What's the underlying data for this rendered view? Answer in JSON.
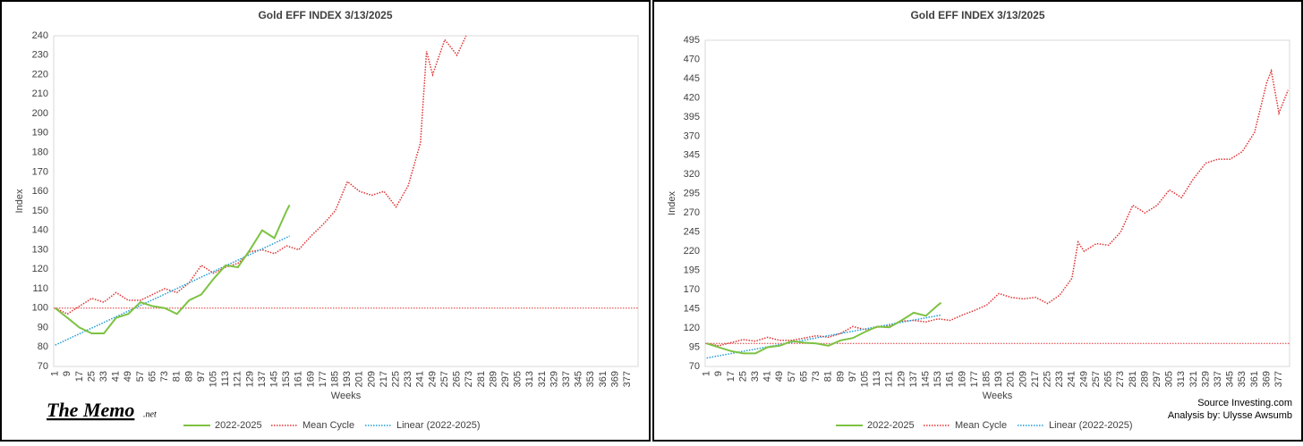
{
  "chart_data": [
    {
      "type": "line",
      "title": "Gold EFF  INDEX 3/13/2025",
      "x_label": "Weeks",
      "y_label": "Index",
      "xlim": [
        0,
        384
      ],
      "ylim": [
        70,
        240
      ],
      "xticks": [
        1,
        9,
        17,
        25,
        33,
        41,
        49,
        57,
        65,
        73,
        81,
        89,
        97,
        105,
        113,
        121,
        129,
        137,
        145,
        153,
        161,
        169,
        177,
        185,
        193,
        201,
        209,
        217,
        225,
        233,
        241,
        249,
        257,
        265,
        273,
        281,
        289,
        297,
        305,
        313,
        321,
        329,
        337,
        345,
        353,
        361,
        369,
        377
      ],
      "yticks": [
        70,
        80,
        90,
        100,
        110,
        120,
        130,
        140,
        150,
        160,
        170,
        180,
        190,
        200,
        210,
        220,
        230,
        240
      ],
      "reference_lines": [
        {
          "value": 100,
          "color": "#e03030"
        }
      ],
      "series": [
        {
          "name": "2022-2025",
          "color": "#7dc242",
          "style": "solid",
          "x": [
            1,
            9,
            17,
            25,
            33,
            41,
            49,
            57,
            65,
            73,
            81,
            89,
            97,
            105,
            113,
            121,
            129,
            137,
            145,
            153,
            155
          ],
          "values": [
            100,
            95,
            90,
            87,
            87,
            95,
            97,
            103,
            101,
            100,
            97,
            104,
            107,
            115,
            122,
            121,
            130,
            140,
            136,
            150,
            153
          ]
        },
        {
          "name": "Mean Cycle",
          "color": "#e03030",
          "style": "dotted",
          "x": [
            1,
            9,
            17,
            25,
            33,
            41,
            49,
            57,
            65,
            73,
            81,
            89,
            97,
            105,
            113,
            121,
            129,
            137,
            145,
            153,
            161,
            169,
            177,
            185,
            193,
            201,
            209,
            217,
            225,
            233,
            241,
            245,
            249,
            257,
            265,
            271
          ],
          "values": [
            100,
            97,
            101,
            105,
            103,
            108,
            104,
            104,
            107,
            110,
            108,
            113,
            122,
            118,
            121,
            123,
            129,
            130,
            128,
            132,
            130,
            137,
            143,
            150,
            165,
            160,
            158,
            160,
            152,
            163,
            185,
            232,
            220,
            238,
            230,
            240
          ]
        },
        {
          "name": "Linear (2022-2025)",
          "color": "#1f9bd7",
          "style": "dotted",
          "x": [
            1,
            155
          ],
          "values": [
            81,
            137
          ]
        }
      ],
      "brand": "The Memo",
      "brand_suffix": ".net"
    },
    {
      "type": "line",
      "title": "Gold EFF  INDEX 3/13/2025",
      "x_label": "Weeks",
      "y_label": "Index",
      "xlim": [
        0,
        384
      ],
      "ylim": [
        70,
        495
      ],
      "xticks": [
        1,
        9,
        17,
        25,
        33,
        41,
        49,
        57,
        65,
        73,
        81,
        89,
        97,
        105,
        113,
        121,
        129,
        137,
        145,
        153,
        161,
        169,
        177,
        185,
        193,
        201,
        209,
        217,
        225,
        233,
        241,
        249,
        257,
        265,
        273,
        281,
        289,
        297,
        305,
        313,
        321,
        329,
        337,
        345,
        353,
        361,
        369,
        377
      ],
      "yticks": [
        70,
        95,
        120,
        145,
        170,
        195,
        220,
        245,
        270,
        295,
        320,
        345,
        370,
        395,
        420,
        445,
        470,
        495
      ],
      "reference_lines": [
        {
          "value": 100,
          "color": "#e03030"
        }
      ],
      "series": [
        {
          "name": "2022-2025",
          "color": "#7dc242",
          "style": "solid",
          "x": [
            1,
            9,
            17,
            25,
            33,
            41,
            49,
            57,
            65,
            73,
            81,
            89,
            97,
            105,
            113,
            121,
            129,
            137,
            145,
            153,
            155
          ],
          "values": [
            100,
            95,
            90,
            87,
            87,
            95,
            97,
            103,
            101,
            100,
            97,
            104,
            107,
            115,
            122,
            121,
            130,
            140,
            136,
            150,
            153
          ]
        },
        {
          "name": "Mean Cycle",
          "color": "#e03030",
          "style": "dotted",
          "x": [
            1,
            9,
            17,
            25,
            33,
            41,
            49,
            57,
            65,
            73,
            81,
            89,
            97,
            105,
            113,
            121,
            129,
            137,
            145,
            153,
            161,
            169,
            177,
            185,
            193,
            201,
            209,
            217,
            225,
            233,
            241,
            245,
            249,
            257,
            265,
            273,
            281,
            289,
            297,
            305,
            313,
            321,
            329,
            337,
            345,
            353,
            361,
            369,
            372,
            377,
            383
          ],
          "values": [
            100,
            97,
            101,
            105,
            103,
            108,
            104,
            104,
            107,
            110,
            108,
            113,
            122,
            118,
            121,
            123,
            129,
            130,
            128,
            132,
            130,
            137,
            143,
            150,
            165,
            160,
            158,
            160,
            152,
            163,
            185,
            232,
            220,
            230,
            228,
            245,
            280,
            270,
            280,
            300,
            290,
            315,
            335,
            340,
            340,
            350,
            375,
            440,
            455,
            400,
            430
          ]
        },
        {
          "name": "Linear (2022-2025)",
          "color": "#1f9bd7",
          "style": "dotted",
          "x": [
            1,
            155
          ],
          "values": [
            81,
            137
          ]
        }
      ],
      "annotations": [
        "Source Investing.com",
        "Analysis by: Ulysse Awsumb"
      ]
    }
  ]
}
